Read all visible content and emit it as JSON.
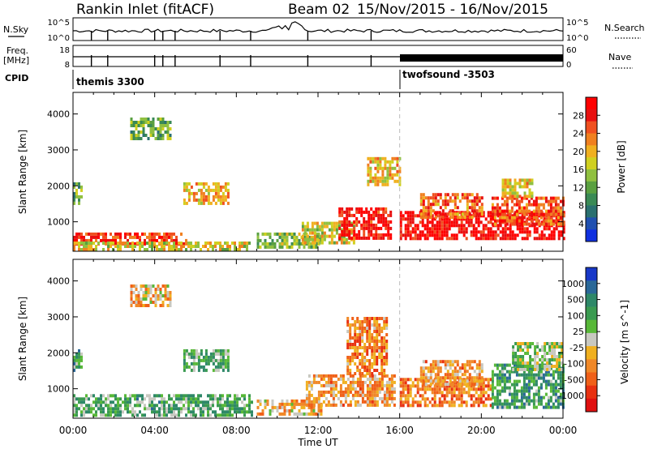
{
  "header": {
    "station": "Rankin Inlet (fitACF)",
    "beam": "Beam 02",
    "dates": "15/Nov/2015 - 16/Nov/2015"
  },
  "strips": {
    "nsky_label": "N.Sky",
    "nsky_ticks": [
      "10^5",
      "10^0"
    ],
    "nsearch_label": "N.Search",
    "nsearch_ticks": [
      "10^5",
      "10^0"
    ],
    "freq_label_1": "Freq.",
    "freq_label_2": "[MHz]",
    "freq_ticks": [
      "18",
      "8"
    ],
    "nave_label": "Nave",
    "nave_ticks": [
      "60",
      "0"
    ],
    "cpid_label": "CPID",
    "cpid_segments": [
      {
        "name": "themis 3300",
        "start_hour": 0
      },
      {
        "name": "twofsound -3503",
        "start_hour": 16
      }
    ]
  },
  "chart_data": [
    {
      "type": "heatmap",
      "panel": "power",
      "ylabel": "Slant Range [km]",
      "yticks": [
        "1000",
        "2000",
        "3000",
        "4000"
      ],
      "ylim": [
        180,
        4600
      ],
      "xlim": [
        0,
        24
      ],
      "colorbar_label": "Power [dB]",
      "colorbar_ticks": [
        "4",
        "8",
        "12",
        "16",
        "20",
        "24",
        "28"
      ],
      "colorbar_colors": [
        "#1030e0",
        "#2050b0",
        "#2a7070",
        "#3a8a55",
        "#5aa040",
        "#90c040",
        "#d0d020",
        "#f0b020",
        "#f08020",
        "#f05020",
        "#e81010",
        "#ff0000"
      ],
      "regions": [
        {
          "t0": 0.0,
          "t1": 5.6,
          "r0": 350,
          "r1": 700,
          "level": 0.85
        },
        {
          "t0": 0.0,
          "t1": 8.6,
          "r0": 250,
          "r1": 450,
          "level": 0.55
        },
        {
          "t0": 0.0,
          "t1": 0.4,
          "r0": 1500,
          "r1": 2100,
          "level": 0.35
        },
        {
          "t0": 2.8,
          "t1": 4.8,
          "r0": 3300,
          "r1": 3900,
          "level": 0.4
        },
        {
          "t0": 5.4,
          "t1": 7.6,
          "r0": 1500,
          "r1": 2100,
          "level": 0.65
        },
        {
          "t0": 9.0,
          "t1": 12.2,
          "r0": 250,
          "r1": 700,
          "level": 0.45
        },
        {
          "t0": 11.2,
          "t1": 13.8,
          "r0": 450,
          "r1": 1000,
          "level": 0.55
        },
        {
          "t0": 13.0,
          "t1": 15.6,
          "r0": 500,
          "r1": 1400,
          "level": 0.9
        },
        {
          "t0": 14.4,
          "t1": 16.0,
          "r0": 2000,
          "r1": 2800,
          "level": 0.6
        },
        {
          "t0": 16.0,
          "t1": 24.0,
          "r0": 500,
          "r1": 1300,
          "level": 0.95
        },
        {
          "t0": 17.0,
          "t1": 20.0,
          "r0": 1100,
          "r1": 1800,
          "level": 0.75
        },
        {
          "t0": 20.5,
          "t1": 24.0,
          "r0": 900,
          "r1": 1700,
          "level": 0.8
        },
        {
          "t0": 21.0,
          "t1": 22.5,
          "r0": 1700,
          "r1": 2200,
          "level": 0.6
        }
      ]
    },
    {
      "type": "heatmap",
      "panel": "velocity",
      "ylabel": "Slant Range [km]",
      "yticks": [
        "1000",
        "2000",
        "3000",
        "4000"
      ],
      "ylim": [
        180,
        4600
      ],
      "xlim": [
        0,
        24
      ],
      "xlabel": "Time UT",
      "xticks": [
        "00:00",
        "04:00",
        "08:00",
        "12:00",
        "16:00",
        "20:00",
        "00:00"
      ],
      "colorbar_label": "Velocity [m s^-1]",
      "colorbar_ticks": [
        "1000",
        "500",
        "100",
        "25",
        "-25",
        "-100",
        "-500",
        "-1000"
      ],
      "colorbar_colors": [
        "#1838c8",
        "#2a6898",
        "#2e8868",
        "#3a9a50",
        "#58b838",
        "#c8c8c0",
        "#f0b020",
        "#f08828",
        "#f06018",
        "#e83010",
        "#e01010"
      ],
      "regions": [
        {
          "t0": 0.0,
          "t1": 8.8,
          "r0": 250,
          "r1": 850,
          "level": 0.35
        },
        {
          "t0": 0.0,
          "t1": 0.4,
          "r0": 1500,
          "r1": 2100,
          "level": 0.3
        },
        {
          "t0": 2.8,
          "t1": 4.8,
          "r0": 3300,
          "r1": 3900,
          "level": 0.6
        },
        {
          "t0": 5.4,
          "t1": 7.6,
          "r0": 1500,
          "r1": 2100,
          "level": 0.35
        },
        {
          "t0": 9.0,
          "t1": 12.2,
          "r0": 250,
          "r1": 700,
          "level": 0.6
        },
        {
          "t0": 11.4,
          "t1": 15.8,
          "r0": 500,
          "r1": 1400,
          "level": 0.65
        },
        {
          "t0": 13.4,
          "t1": 15.4,
          "r0": 1400,
          "r1": 3000,
          "level": 0.7
        },
        {
          "t0": 16.0,
          "t1": 20.5,
          "r0": 500,
          "r1": 1300,
          "level": 0.72
        },
        {
          "t0": 17.0,
          "t1": 20.0,
          "r0": 1100,
          "r1": 1800,
          "level": 0.65
        },
        {
          "t0": 20.5,
          "t1": 24.0,
          "r0": 500,
          "r1": 1700,
          "level": 0.3
        },
        {
          "t0": 21.5,
          "t1": 24.0,
          "r0": 1500,
          "r1": 2300,
          "level": 0.45
        }
      ]
    }
  ]
}
